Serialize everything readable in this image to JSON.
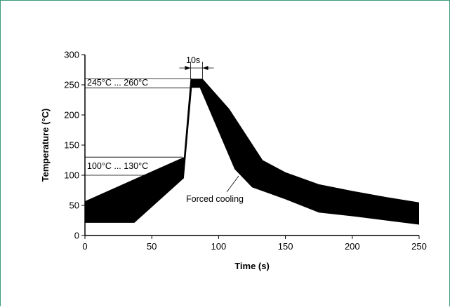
{
  "chart_data": {
    "type": "area",
    "xlabel": "Time (s)",
    "ylabel": "Temperature (°C)",
    "xlim": [
      0,
      250
    ],
    "ylim": [
      0,
      300
    ],
    "xticks": [
      0,
      50,
      100,
      150,
      200,
      250
    ],
    "yticks": [
      0,
      50,
      100,
      150,
      200,
      250,
      300
    ],
    "grid": false,
    "band": {
      "upper": [
        [
          0,
          57
        ],
        [
          74,
          130
        ],
        [
          79,
          260
        ],
        [
          88,
          260
        ],
        [
          108,
          210
        ],
        [
          133,
          125
        ],
        [
          150,
          105
        ],
        [
          175,
          85
        ],
        [
          200,
          74
        ],
        [
          225,
          64
        ],
        [
          250,
          55
        ]
      ],
      "lower": [
        [
          0,
          21
        ],
        [
          37,
          21
        ],
        [
          74,
          95
        ],
        [
          80,
          245
        ],
        [
          86,
          245
        ],
        [
          112,
          110
        ],
        [
          125,
          80
        ],
        [
          150,
          60
        ],
        [
          175,
          38
        ],
        [
          200,
          32
        ],
        [
          225,
          25
        ],
        [
          250,
          18
        ]
      ]
    },
    "annotations": {
      "peak_range": "245°C ... 260°C",
      "peak_range_values": [
        245,
        260
      ],
      "preheat_range": "100°C ... 130°C",
      "preheat_range_values": [
        100,
        130
      ],
      "duration": "10s",
      "duration_interval": [
        79,
        88
      ],
      "cooling": "Forced cooling"
    }
  }
}
